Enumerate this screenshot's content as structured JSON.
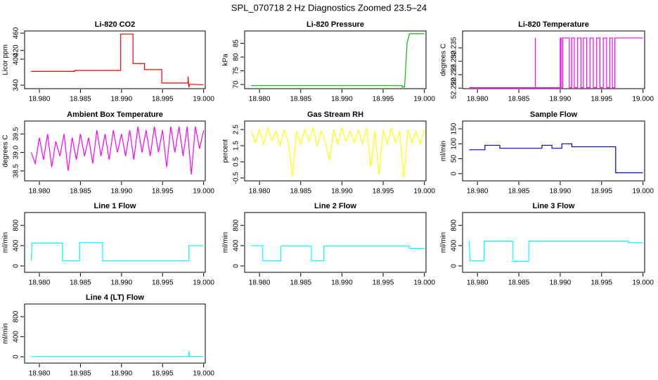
{
  "title": "SPL_070718  2 Hz Diagnostics Zoomed 23.5–24",
  "chart_data": [
    {
      "type": "line",
      "title": "Li-820 CO2",
      "ylabel": "Licor ppm",
      "color": "#ff0000",
      "xlim": [
        18.9782,
        19.0002
      ],
      "xticks": [
        {
          "value": 18.98,
          "label": "18.980"
        },
        18.985,
        {
          "value": 18.99,
          "label": "18.990"
        },
        18.995,
        {
          "value": 19.0,
          "label": "19.000"
        }
      ],
      "ylim": [
        332,
        465
      ],
      "yticks": [
        340,
        400,
        420,
        460
      ],
      "x": [
        18.979,
        18.9843,
        18.9843,
        18.9899,
        18.9899,
        18.9914,
        18.9914,
        18.9928,
        18.9928,
        18.9949,
        18.9949,
        18.9981,
        18.9981,
        18.9982,
        18.9983,
        19.0
      ],
      "values": [
        372,
        372,
        374,
        374,
        458,
        458,
        390,
        390,
        376,
        376,
        345,
        345,
        360,
        335,
        342,
        341
      ]
    },
    {
      "type": "line",
      "title": "Li-820 Pressure",
      "ylabel": "kPa",
      "color": "#00c000",
      "xlim": [
        18.9782,
        19.0002
      ],
      "xticks": [
        {
          "value": 18.98,
          "label": "18.980"
        },
        18.985,
        {
          "value": 18.99,
          "label": "18.990"
        },
        18.995,
        {
          "value": 19.0,
          "label": "19.000"
        }
      ],
      "ylim": [
        68.5,
        89.5
      ],
      "yticks": [
        70,
        75,
        80,
        85
      ],
      "x": [
        18.979,
        18.9973,
        18.9973,
        18.9976,
        18.9979,
        18.9982,
        19.0
      ],
      "values": [
        69.6,
        69.6,
        69.1,
        69.1,
        85,
        88.5,
        88.5
      ]
    },
    {
      "type": "line",
      "title": "Li-820 Temperature",
      "ylabel": "degrees C",
      "color": "#ff00ff",
      "xlim": [
        18.9782,
        19.0002
      ],
      "xticks": [
        {
          "value": 18.98,
          "label": "18.980"
        },
        18.985,
        {
          "value": 18.99,
          "label": "18.990"
        },
        18.995,
        {
          "value": 19.0,
          "label": "19.000"
        }
      ],
      "ylim": [
        52.2198,
        52.2413
      ],
      "yticks": [
        {
          "value": 52.22,
          "label": "52.220"
        },
        52.225,
        {
          "value": 52.23,
          "label": "52.230"
        },
        52.235
      ],
      "x": [
        18.979,
        18.987,
        18.987,
        18.987,
        18.99,
        18.99,
        18.9901,
        18.9901,
        18.9903,
        18.9903,
        18.9911,
        18.9911,
        18.9914,
        18.9914,
        18.9917,
        18.9917,
        18.9921,
        18.9921,
        18.9925,
        18.9925,
        18.9928,
        18.9928,
        18.9932,
        18.9932,
        18.9936,
        18.9936,
        18.994,
        18.994,
        18.9944,
        18.9944,
        18.9948,
        18.9948,
        18.9952,
        18.9952,
        18.9956,
        18.9956,
        18.996,
        18.996,
        18.9963,
        18.9963,
        18.9966,
        18.9966,
        19.0
      ],
      "values": [
        52.2202,
        52.2202,
        52.2387,
        52.2202,
        52.2202,
        52.2387,
        52.2387,
        52.2202,
        52.2202,
        52.2387,
        52.2387,
        52.2202,
        52.2202,
        52.2387,
        52.2387,
        52.2202,
        52.2202,
        52.2387,
        52.2387,
        52.2202,
        52.2202,
        52.2387,
        52.2387,
        52.2202,
        52.2202,
        52.2387,
        52.2387,
        52.2202,
        52.2202,
        52.2387,
        52.2387,
        52.2202,
        52.2202,
        52.2387,
        52.2387,
        52.2202,
        52.2202,
        52.2387,
        52.2387,
        52.2202,
        52.2202,
        52.2387,
        52.2387
      ]
    },
    {
      "type": "line",
      "title": "Ambient Box Temperature",
      "ylabel": "degrees C",
      "color": "#ff00ff",
      "xlim": [
        18.9782,
        19.0002
      ],
      "xticks": [
        {
          "value": 18.98,
          "label": "18.980"
        },
        18.985,
        {
          "value": 18.99,
          "label": "18.990"
        },
        18.995,
        {
          "value": 19.0,
          "label": "19.000"
        }
      ],
      "ylim": [
        38.23,
        39.85
      ],
      "yticks": [
        38.5,
        {
          "value": 39,
          "label": "39.0"
        },
        39.5
      ],
      "x": [
        18.979,
        18.9795,
        18.98,
        18.9805,
        18.981,
        18.9815,
        18.982,
        18.9825,
        18.983,
        18.9835,
        18.984,
        18.9845,
        18.985,
        18.9855,
        18.986,
        18.9865,
        18.987,
        18.9875,
        18.988,
        18.9885,
        18.989,
        18.9895,
        18.99,
        18.9905,
        18.991,
        18.9915,
        18.992,
        18.9925,
        18.993,
        18.9935,
        18.994,
        18.9945,
        18.995,
        18.9955,
        18.996,
        18.9965,
        18.997,
        18.9975,
        18.998,
        18.9985,
        18.999,
        18.9995,
        19.0
      ],
      "values": [
        39.0,
        38.7,
        39.4,
        38.8,
        39.5,
        38.6,
        39.3,
        38.9,
        39.5,
        38.5,
        39.4,
        38.8,
        39.5,
        38.9,
        39.4,
        38.7,
        39.6,
        38.9,
        39.5,
        38.8,
        39.6,
        39.0,
        39.5,
        38.9,
        39.6,
        38.8,
        39.7,
        39.0,
        39.6,
        38.9,
        39.7,
        39.0,
        39.6,
        38.6,
        39.7,
        39.0,
        39.7,
        38.9,
        39.7,
        38.4,
        39.7,
        39.1,
        39.6
      ]
    },
    {
      "type": "line",
      "title": "Gas Stream RH",
      "ylabel": "percent",
      "color": "#ffff00",
      "xlim": [
        18.9782,
        19.0002
      ],
      "xticks": [
        {
          "value": 18.98,
          "label": "18.980"
        },
        18.985,
        {
          "value": 18.99,
          "label": "18.990"
        },
        18.995,
        {
          "value": 19.0,
          "label": "19.000"
        }
      ],
      "ylim": [
        -0.68,
        3.03
      ],
      "yticks": [
        -0.5,
        0.5,
        1.5,
        2.5
      ],
      "x": [
        18.979,
        18.9795,
        18.98,
        18.9805,
        18.981,
        18.9815,
        18.982,
        18.9825,
        18.983,
        18.9835,
        18.984,
        18.9845,
        18.985,
        18.9855,
        18.986,
        18.9865,
        18.987,
        18.9875,
        18.988,
        18.9885,
        18.989,
        18.9895,
        18.99,
        18.9905,
        18.991,
        18.9915,
        18.992,
        18.9925,
        18.993,
        18.9935,
        18.994,
        18.9945,
        18.995,
        18.9955,
        18.996,
        18.9965,
        18.997,
        18.9975,
        18.998,
        18.9985,
        18.999,
        18.9995,
        19.0
      ],
      "values": [
        2.4,
        1.7,
        2.5,
        1.6,
        2.6,
        1.8,
        2.4,
        1.5,
        2.5,
        1.7,
        -0.4,
        2.4,
        1.6,
        2.5,
        1.8,
        2.6,
        1.5,
        2.4,
        1.7,
        0.6,
        2.5,
        1.6,
        2.6,
        1.8,
        2.4,
        1.7,
        2.5,
        1.6,
        2.6,
        0.2,
        2.4,
        -0.3,
        2.5,
        1.6,
        2.6,
        1.7,
        2.4,
        -0.5,
        2.5,
        1.7,
        2.4,
        1.6,
        2.5
      ]
    },
    {
      "type": "line",
      "title": "Sample Flow",
      "ylabel": "ml/min",
      "color": "#0000cc",
      "xlim": [
        18.9782,
        19.0002
      ],
      "xticks": [
        {
          "value": 18.98,
          "label": "18.980"
        },
        18.985,
        {
          "value": 18.99,
          "label": "18.990"
        },
        18.995,
        {
          "value": 19.0,
          "label": "19.000"
        }
      ],
      "ylim": [
        -24,
        176
      ],
      "yticks": [
        0,
        50,
        100,
        150
      ],
      "x": [
        18.979,
        18.9809,
        18.9809,
        18.9827,
        18.9827,
        18.9878,
        18.9878,
        18.989,
        18.989,
        18.9902,
        18.9902,
        18.9914,
        18.9914,
        18.9967,
        18.9967,
        19.0
      ],
      "values": [
        80,
        80,
        95,
        95,
        85,
        85,
        95,
        95,
        85,
        85,
        100,
        100,
        90,
        90,
        3,
        3
      ]
    },
    {
      "type": "line",
      "title": "Line 1 Flow",
      "ylabel": "ml/min",
      "color": "#00ffff",
      "xlim": [
        18.9782,
        19.0002
      ],
      "xticks": [
        {
          "value": 18.98,
          "label": "18.980"
        },
        18.985,
        {
          "value": 18.99,
          "label": "18.990"
        },
        18.995,
        {
          "value": 19.0,
          "label": "19.000"
        }
      ],
      "ylim": [
        -126,
        1053
      ],
      "yticks": [
        0,
        400,
        800
      ],
      "x": [
        18.979,
        18.9791,
        18.9828,
        18.9828,
        18.9849,
        18.9849,
        18.9877,
        18.9877,
        18.9982,
        18.9982,
        19.0
      ],
      "values": [
        100,
        450,
        450,
        100,
        100,
        460,
        460,
        100,
        100,
        400,
        400
      ]
    },
    {
      "type": "line",
      "title": "Line 2 Flow",
      "ylabel": "ml/min",
      "color": "#00ffff",
      "xlim": [
        18.9782,
        19.0002
      ],
      "xticks": [
        {
          "value": 18.98,
          "label": "18.980"
        },
        18.985,
        {
          "value": 18.99,
          "label": "18.990"
        },
        18.995,
        {
          "value": 19.0,
          "label": "19.000"
        }
      ],
      "ylim": [
        -126,
        1053
      ],
      "yticks": [
        0,
        400,
        800
      ],
      "x": [
        18.979,
        18.9804,
        18.9804,
        18.9826,
        18.9826,
        18.9863,
        18.9863,
        18.9878,
        18.9878,
        18.9982,
        18.9982,
        19.0
      ],
      "values": [
        400,
        400,
        100,
        100,
        390,
        390,
        100,
        100,
        390,
        390,
        340,
        340
      ]
    },
    {
      "type": "line",
      "title": "Line 3 Flow",
      "ylabel": "ml/min",
      "color": "#00ffff",
      "xlim": [
        18.9782,
        19.0002
      ],
      "xticks": [
        {
          "value": 18.98,
          "label": "18.980"
        },
        18.985,
        {
          "value": 18.99,
          "label": "18.990"
        },
        18.995,
        {
          "value": 19.0,
          "label": "19.000"
        }
      ],
      "ylim": [
        -126,
        1053
      ],
      "yticks": [
        0,
        400,
        800
      ],
      "x": [
        18.979,
        18.9791,
        18.9808,
        18.9808,
        18.9843,
        18.9843,
        18.9862,
        18.9862,
        18.9982,
        18.9982,
        19.0
      ],
      "values": [
        500,
        100,
        100,
        490,
        490,
        90,
        90,
        490,
        490,
        460,
        460
      ]
    },
    {
      "type": "line",
      "title": "Line 4 (LT) Flow",
      "ylabel": "ml/min",
      "color": "#00ffff",
      "xlim": [
        18.9782,
        19.0002
      ],
      "xticks": [
        {
          "value": 18.98,
          "label": "18.980"
        },
        18.985,
        {
          "value": 18.99,
          "label": "18.990"
        },
        18.995,
        {
          "value": 19.0,
          "label": "19.000"
        }
      ],
      "ylim": [
        -126,
        1053
      ],
      "yticks": [
        0,
        400,
        800
      ],
      "x": [
        18.979,
        18.9982,
        18.9982,
        18.9983,
        19.0
      ],
      "values": [
        5,
        5,
        120,
        10,
        5
      ]
    }
  ]
}
